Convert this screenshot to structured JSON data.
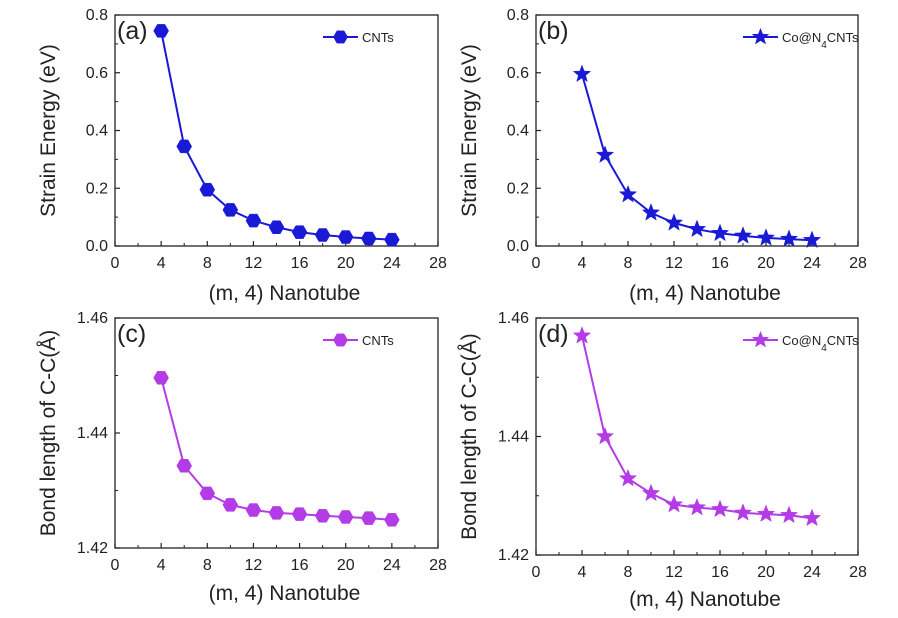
{
  "chart_data": [
    {
      "type": "line",
      "panel_label": "(a)",
      "xlabel": "(m, 4) Nanotube",
      "ylabel": "Strain Energy (eV)",
      "xlim": [
        0,
        28
      ],
      "ylim": [
        0,
        0.8
      ],
      "xticks": [
        0,
        4,
        8,
        12,
        16,
        20,
        24,
        28
      ],
      "yticks": [
        "0.0",
        "0.2",
        "0.4",
        "0.6",
        "0.8"
      ],
      "legend_position": "top-right",
      "series": [
        {
          "name": "CNTs",
          "marker": "hexagon",
          "color": "#1a1ad6",
          "x": [
            4,
            6,
            8,
            10,
            12,
            14,
            16,
            18,
            20,
            22,
            24
          ],
          "y": [
            0.745,
            0.345,
            0.195,
            0.125,
            0.088,
            0.065,
            0.048,
            0.038,
            0.031,
            0.026,
            0.022
          ]
        }
      ]
    },
    {
      "type": "line",
      "panel_label": "(b)",
      "xlabel": "(m, 4) Nanotube",
      "ylabel": "Strain Energy (eV)",
      "xlim": [
        0,
        28
      ],
      "ylim": [
        0,
        0.8
      ],
      "xticks": [
        0,
        4,
        8,
        12,
        16,
        20,
        24,
        28
      ],
      "yticks": [
        "0.0",
        "0.2",
        "0.4",
        "0.6",
        "0.8"
      ],
      "legend_position": "top-right",
      "series": [
        {
          "name": "Co@N",
          "name_sub": "4",
          "name_suffix": "CNTs",
          "marker": "star",
          "color": "#1a1ad6",
          "x": [
            4,
            6,
            8,
            10,
            12,
            14,
            16,
            18,
            20,
            22,
            24
          ],
          "y": [
            0.595,
            0.315,
            0.178,
            0.115,
            0.08,
            0.058,
            0.044,
            0.035,
            0.028,
            0.024,
            0.02
          ]
        }
      ]
    },
    {
      "type": "line",
      "panel_label": "(c)",
      "xlabel": "(m, 4) Nanotube",
      "ylabel": "Bond length of C-C(Å)",
      "xlim": [
        0,
        28
      ],
      "ylim": [
        1.42,
        1.46
      ],
      "xticks": [
        0,
        4,
        8,
        12,
        16,
        20,
        24,
        28
      ],
      "yticks": [
        "1.42",
        "1.44",
        "1.46"
      ],
      "legend_position": "top-right",
      "series": [
        {
          "name": "CNTs",
          "marker": "hexagon",
          "color": "#b43ce6",
          "x": [
            4,
            6,
            8,
            10,
            12,
            14,
            16,
            18,
            20,
            22,
            24
          ],
          "y": [
            1.4496,
            1.4343,
            1.4295,
            1.4275,
            1.4266,
            1.4261,
            1.4259,
            1.4256,
            1.4254,
            1.4252,
            1.4249
          ]
        }
      ]
    },
    {
      "type": "line",
      "panel_label": "(d)",
      "xlabel": "(m, 4) Nanotube",
      "ylabel": "Bond length of C-C(Å)",
      "xlim": [
        0,
        28
      ],
      "ylim": [
        1.42,
        1.46
      ],
      "xticks": [
        0,
        4,
        8,
        12,
        16,
        20,
        24,
        28
      ],
      "yticks": [
        "1.42",
        "1.44",
        "1.46"
      ],
      "legend_position": "top-right",
      "series": [
        {
          "name": "Co@N",
          "name_sub": "4",
          "name_suffix": "CNTs",
          "marker": "star",
          "color": "#b43ce6",
          "x": [
            4,
            6,
            8,
            10,
            12,
            14,
            16,
            18,
            20,
            22,
            24
          ],
          "y": [
            1.457,
            1.44,
            1.4329,
            1.4304,
            1.4285,
            1.428,
            1.4277,
            1.4271,
            1.4269,
            1.4267,
            1.4262
          ]
        }
      ]
    }
  ]
}
